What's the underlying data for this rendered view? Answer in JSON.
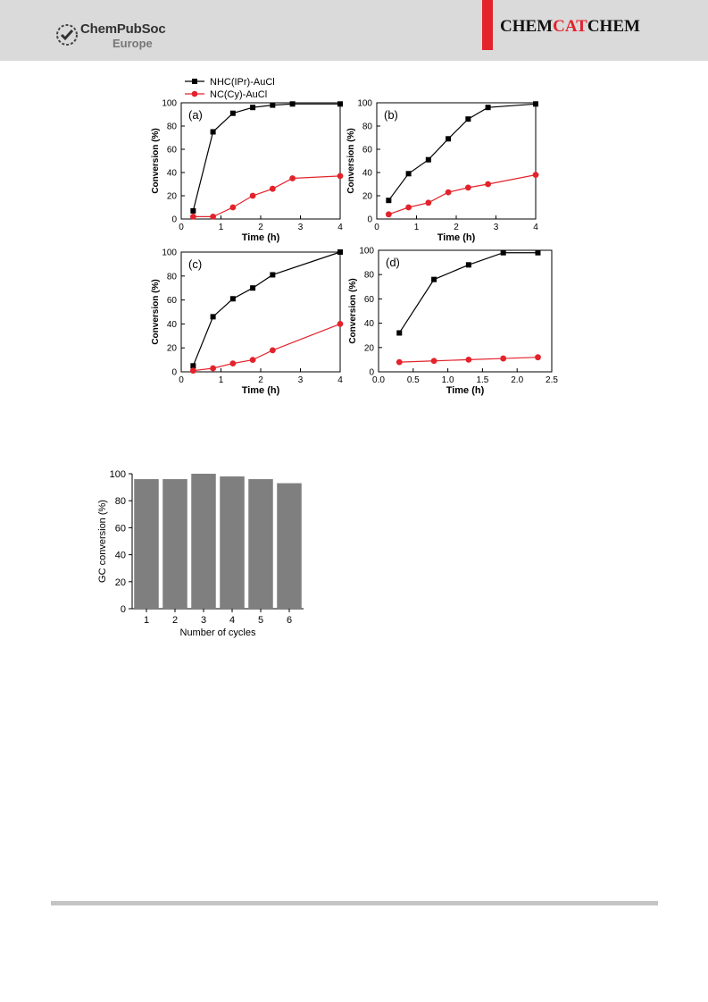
{
  "header": {
    "publisher_name": "ChemPubSoc",
    "publisher_sub": "Europe",
    "journal_part1": "CHEM",
    "journal_part2": "CAT",
    "journal_part3": "CHEM",
    "accent_color": "#e3222b",
    "band_color": "#dadada"
  },
  "legend": {
    "series1": "NHC(IPr)-AuCl",
    "series2": "NC(Cy)-AuCl"
  },
  "chart_data": [
    {
      "type": "line",
      "panel_label": "(a)",
      "xlabel": "Time (h)",
      "ylabel": "Conversion (%)",
      "xlim": [
        0,
        4
      ],
      "ylim": [
        0,
        100
      ],
      "xticks": [
        0,
        1,
        2,
        3,
        4
      ],
      "xtick_labels": [
        "0",
        "1",
        "2",
        "3",
        "4"
      ],
      "yticks": [
        0,
        20,
        40,
        60,
        80,
        100
      ],
      "series": [
        {
          "name": "NHC(IPr)-AuCl",
          "color": "#000000",
          "marker": "square",
          "x": [
            0.3,
            0.8,
            1.3,
            1.8,
            2.3,
            2.8,
            4.0
          ],
          "y": [
            7,
            75,
            91,
            96,
            98,
            99,
            99
          ]
        },
        {
          "name": "NC(Cy)-AuCl",
          "color": "#e3222b",
          "marker": "circle",
          "x": [
            0.3,
            0.8,
            1.3,
            1.8,
            2.3,
            2.8,
            4.0
          ],
          "y": [
            2,
            2,
            10,
            20,
            26,
            35,
            37
          ]
        }
      ]
    },
    {
      "type": "line",
      "panel_label": "(b)",
      "xlabel": "Time (h)",
      "ylabel": "Conversion (%)",
      "xlim": [
        0,
        4
      ],
      "ylim": [
        0,
        100
      ],
      "xticks": [
        0,
        1,
        2,
        3,
        4
      ],
      "xtick_labels": [
        "0",
        "1",
        "2",
        "3",
        "4"
      ],
      "yticks": [
        0,
        20,
        40,
        60,
        80,
        100
      ],
      "series": [
        {
          "name": "NHC(IPr)-AuCl",
          "color": "#000000",
          "marker": "square",
          "x": [
            0.3,
            0.8,
            1.3,
            1.8,
            2.3,
            2.8,
            4.0
          ],
          "y": [
            16,
            39,
            51,
            69,
            86,
            96,
            99
          ]
        },
        {
          "name": "NC(Cy)-AuCl",
          "color": "#e3222b",
          "marker": "circle",
          "x": [
            0.3,
            0.8,
            1.3,
            1.8,
            2.3,
            2.8,
            4.0
          ],
          "y": [
            4,
            10,
            14,
            23,
            27,
            30,
            38
          ]
        }
      ]
    },
    {
      "type": "line",
      "panel_label": "(c)",
      "xlabel": "Time (h)",
      "ylabel": "Conversion (%)",
      "xlim": [
        0,
        4
      ],
      "ylim": [
        0,
        100
      ],
      "xticks": [
        0,
        1,
        2,
        3,
        4
      ],
      "xtick_labels": [
        "0",
        "1",
        "2",
        "3",
        "4"
      ],
      "yticks": [
        0,
        20,
        40,
        60,
        80,
        100
      ],
      "series": [
        {
          "name": "NHC(IPr)-AuCl",
          "color": "#000000",
          "marker": "square",
          "x": [
            0.3,
            0.8,
            1.3,
            1.8,
            2.3,
            4.0
          ],
          "y": [
            5,
            46,
            61,
            70,
            81,
            100
          ]
        },
        {
          "name": "NC(Cy)-AuCl",
          "color": "#e3222b",
          "marker": "circle",
          "x": [
            0.3,
            0.8,
            1.3,
            1.8,
            2.3,
            4.0
          ],
          "y": [
            1,
            3,
            7,
            10,
            18,
            40
          ]
        }
      ]
    },
    {
      "type": "line",
      "panel_label": "(d)",
      "xlabel": "Time (h)",
      "ylabel": "Conversion (%)",
      "xlim": [
        0,
        2.5
      ],
      "ylim": [
        0,
        100
      ],
      "xticks": [
        0,
        0.5,
        1.0,
        1.5,
        2.0,
        2.5
      ],
      "xtick_labels": [
        "0.0",
        "0.5",
        "1.0",
        "1.5",
        "2.0",
        "2.5"
      ],
      "yticks": [
        0,
        20,
        40,
        60,
        80,
        100
      ],
      "series": [
        {
          "name": "NHC(IPr)-AuCl",
          "color": "#000000",
          "marker": "square",
          "x": [
            0.3,
            0.8,
            1.3,
            1.8,
            2.3
          ],
          "y": [
            32,
            76,
            88,
            98,
            98
          ]
        },
        {
          "name": "NC(Cy)-AuCl",
          "color": "#e3222b",
          "marker": "circle",
          "x": [
            0.3,
            0.8,
            1.3,
            1.8,
            2.3
          ],
          "y": [
            8,
            9,
            10,
            11,
            12
          ]
        }
      ]
    },
    {
      "type": "bar",
      "categories": [
        "1",
        "2",
        "3",
        "4",
        "5",
        "6"
      ],
      "values": [
        96,
        96,
        100,
        98,
        96,
        93
      ],
      "xlabel": "Number of cycles",
      "ylabel": "GC conversion (%)",
      "ylim": [
        0,
        100
      ],
      "yticks": [
        0,
        20,
        40,
        60,
        80,
        100
      ],
      "bar_color": "#7f7f7f"
    }
  ]
}
